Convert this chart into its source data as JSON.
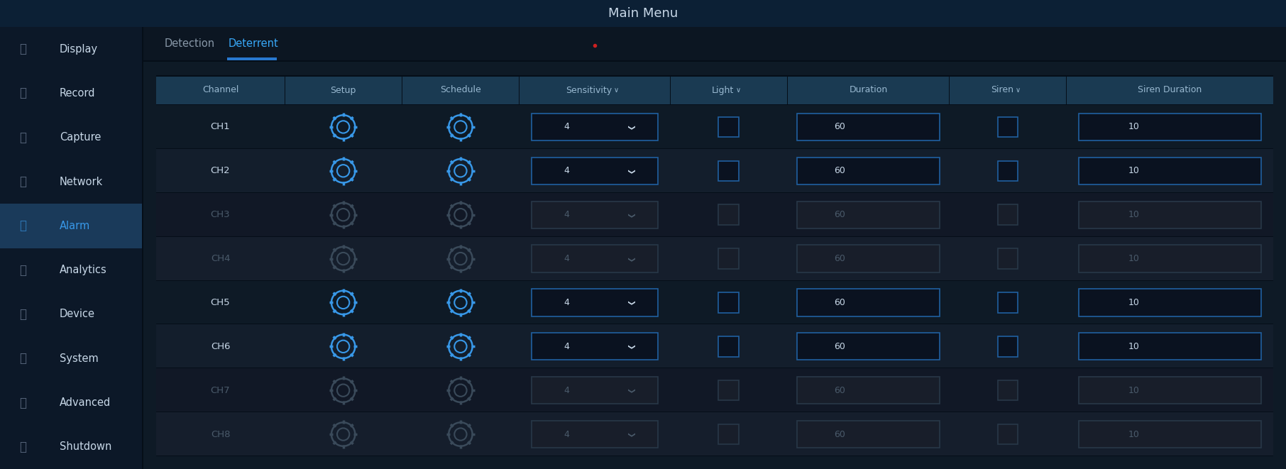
{
  "title": "Main Menu",
  "title_color": "#c8d8e8",
  "bg_color": "#071422",
  "header_bg": "#0c2035",
  "sidebar_bg": "#0c1828",
  "sidebar_selected_bg": "#1a3a5a",
  "content_bg": "#0e1a26",
  "tab_bar_bg": "#0e1a26",
  "table_header_bg": "#1a3a52",
  "table_row_dark": "#0e1824",
  "table_row_mid": "#131e2c",
  "table_row_disabled_dark": "#141c28",
  "table_row_disabled_mid": "#161e2c",
  "cell_bg_active": "#0a1220",
  "cell_bg_disabled": "#181e2a",
  "cell_border_active": "#2060a0",
  "cell_border_disabled": "#283848",
  "cell_border_active2": "#3070b0",
  "text_active": "#c8d8e8",
  "text_disabled": "#4a5a6a",
  "text_blue": "#3898e8",
  "text_header": "#98b8d0",
  "tab_active_color": "#38a8f8",
  "tab_inactive_color": "#8898a8",
  "tab_underline": "#2878d0",
  "sidebar_items": [
    "Display",
    "Record",
    "Capture",
    "Network",
    "Alarm",
    "Analytics",
    "Device",
    "System",
    "Advanced",
    "Shutdown"
  ],
  "sidebar_selected": 4,
  "tabs": [
    "Detection",
    "Deterrent"
  ],
  "active_tab": 1,
  "columns": [
    "Channel",
    "Setup",
    "Schedule",
    "Sensitivity",
    "Light",
    "Duration",
    "Siren",
    "Siren Duration"
  ],
  "rows": [
    {
      "ch": "CH1",
      "active": true,
      "sens": "4",
      "dur": "60",
      "siren_dur": "10"
    },
    {
      "ch": "CH2",
      "active": true,
      "sens": "4",
      "dur": "60",
      "siren_dur": "10"
    },
    {
      "ch": "CH3",
      "active": false,
      "sens": "4",
      "dur": "60",
      "siren_dur": "10"
    },
    {
      "ch": "CH4",
      "active": false,
      "sens": "4",
      "dur": "60",
      "siren_dur": "10"
    },
    {
      "ch": "CH5",
      "active": true,
      "sens": "4",
      "dur": "60",
      "siren_dur": "10"
    },
    {
      "ch": "CH6",
      "active": true,
      "sens": "4",
      "dur": "60",
      "siren_dur": "10"
    },
    {
      "ch": "CH7",
      "active": false,
      "sens": "4",
      "dur": "60",
      "siren_dur": "10"
    },
    {
      "ch": "CH8",
      "active": false,
      "sens": "4",
      "dur": "60",
      "siren_dur": "10"
    }
  ],
  "figsize": [
    18.12,
    6.61
  ],
  "dpi": 100
}
